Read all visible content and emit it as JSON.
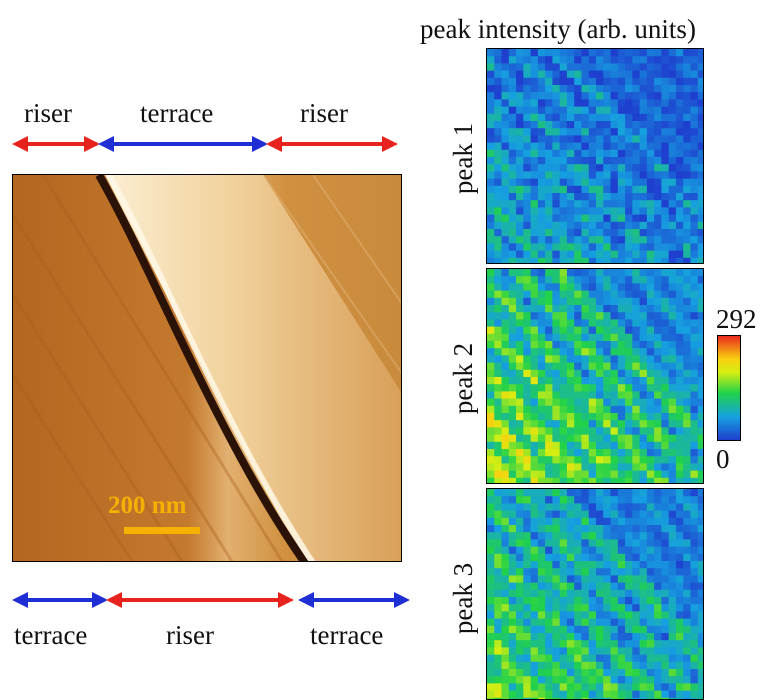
{
  "colorbar_title": "peak intensity (arb. units)",
  "colorbar": {
    "max_label": "292",
    "min_label": "0",
    "max": 292,
    "min": 0
  },
  "top_labels": [
    "riser",
    "terrace",
    "riser"
  ],
  "bottom_labels": [
    "terrace",
    "riser",
    "terrace"
  ],
  "scale_bar": {
    "label": "200 nm",
    "color": "#f5b000"
  },
  "maps": [
    {
      "label": "peak 1",
      "intensity": 0.25
    },
    {
      "label": "peak 2",
      "intensity": 0.55
    },
    {
      "label": "peak 3",
      "intensity": 0.45
    }
  ],
  "colors": {
    "riser_arrow": "#e8231e",
    "terrace_arrow": "#1f2fd6"
  }
}
